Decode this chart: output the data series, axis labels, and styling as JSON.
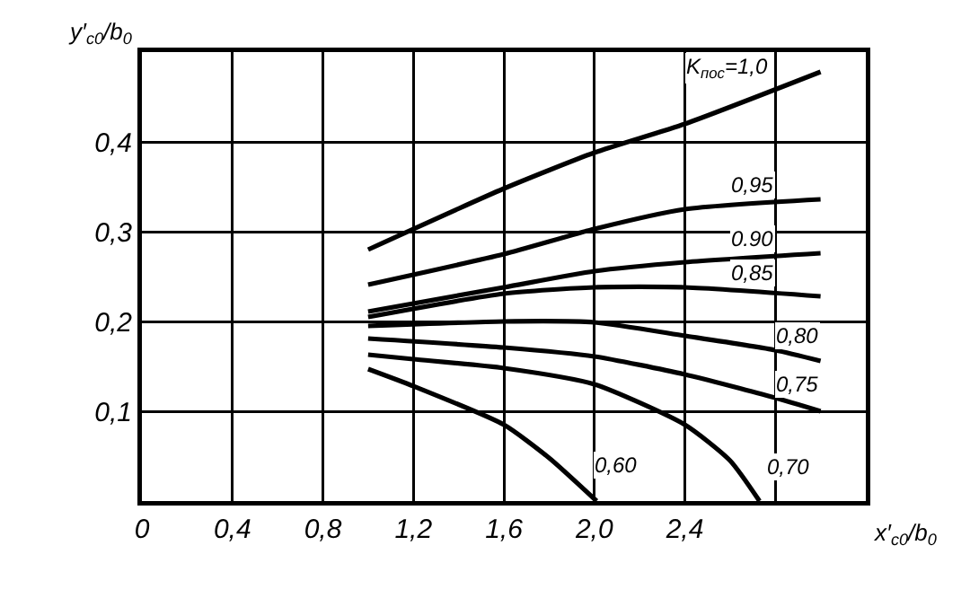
{
  "chart_data": {
    "type": "line",
    "xlabel": "x′$_{c0}$/b$_{0}$",
    "ylabel": "y′$_{c0}$/b$_{0}$",
    "xlim": [
      0,
      3.2
    ],
    "ylim": [
      0,
      0.5
    ],
    "xticks": [
      {
        "value": 0,
        "label": "0"
      },
      {
        "value": 0.4,
        "label": "0,4"
      },
      {
        "value": 0.8,
        "label": "0,8"
      },
      {
        "value": 1.2,
        "label": "1,2"
      },
      {
        "value": 1.6,
        "label": "1,6"
      },
      {
        "value": 2.0,
        "label": "2,0"
      },
      {
        "value": 2.4,
        "label": "2,4"
      },
      {
        "value": 2.8,
        "label": null
      },
      {
        "value": 3.2,
        "label": null
      }
    ],
    "yticks": [
      {
        "value": 0,
        "label": null
      },
      {
        "value": 0.1,
        "label": "0,1"
      },
      {
        "value": 0.2,
        "label": "0,2"
      },
      {
        "value": 0.3,
        "label": "0,3"
      },
      {
        "value": 0.4,
        "label": "0,4"
      },
      {
        "value": 0.5,
        "label": null
      }
    ],
    "grid": true,
    "legend": false,
    "marker": "none",
    "line_style": "solid",
    "series": [
      {
        "name": "K$_{пос}$=1,0",
        "color": "#000000",
        "x": [
          1.0,
          1.6,
          2.0,
          2.4,
          3.0
        ],
        "values": [
          0.28,
          0.348,
          0.388,
          0.42,
          0.478
        ]
      },
      {
        "name": "0,95",
        "color": "#000000",
        "x": [
          1.0,
          1.6,
          2.0,
          2.4,
          3.0
        ],
        "values": [
          0.241,
          0.275,
          0.303,
          0.325,
          0.336
        ]
      },
      {
        "name": "0.90",
        "color": "#000000",
        "x": [
          1.0,
          1.6,
          2.0,
          2.4,
          3.0
        ],
        "values": [
          0.211,
          0.238,
          0.256,
          0.266,
          0.276
        ]
      },
      {
        "name": "0,85",
        "color": "#000000",
        "x": [
          1.0,
          1.6,
          2.0,
          2.4,
          3.0
        ],
        "values": [
          0.205,
          0.231,
          0.238,
          0.238,
          0.228
        ]
      },
      {
        "name": "0,80",
        "color": "#000000",
        "x": [
          1.0,
          1.6,
          2.0,
          2.4,
          2.8,
          3.0
        ],
        "values": [
          0.195,
          0.2,
          0.199,
          0.184,
          0.168,
          0.156
        ]
      },
      {
        "name": "0,75",
        "color": "#000000",
        "x": [
          1.0,
          1.6,
          2.0,
          2.4,
          2.8,
          3.0
        ],
        "values": [
          0.181,
          0.171,
          0.161,
          0.141,
          0.115,
          0.1
        ]
      },
      {
        "name": "0,70",
        "color": "#000000",
        "x": [
          1.0,
          1.2,
          1.6,
          2.0,
          2.4,
          2.6,
          2.73
        ],
        "values": [
          0.163,
          0.158,
          0.148,
          0.13,
          0.085,
          0.045,
          0
        ]
      },
      {
        "name": "0,60",
        "color": "#000000",
        "x": [
          1.0,
          1.2,
          1.6,
          1.8,
          2.01
        ],
        "values": [
          0.147,
          0.128,
          0.085,
          0.048,
          0
        ]
      }
    ]
  }
}
